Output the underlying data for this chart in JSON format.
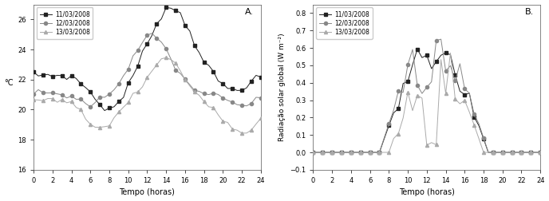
{
  "title_A": "A.",
  "title_B": "B.",
  "xlabel": "Tempo (horas)",
  "ylabel_A": "°C",
  "ylabel_B": "Radiação solar global (W m⁻²)",
  "legend_labels": [
    "11/03/2008",
    "12/03/2008",
    "13/03/2008"
  ],
  "colors": [
    "#222222",
    "#888888",
    "#aaaaaa"
  ],
  "markers": [
    "s",
    "o",
    "^"
  ],
  "marker_size": 3,
  "linewidth": 0.7,
  "xlim_A": [
    0,
    24
  ],
  "xlim_B": [
    0,
    24
  ],
  "ylim_A": [
    16,
    27
  ],
  "ylim_B": [
    -0.1,
    0.85
  ],
  "xticks": [
    0,
    2,
    4,
    6,
    8,
    10,
    12,
    14,
    16,
    18,
    20,
    22,
    24
  ],
  "yticks_A": [
    16,
    18,
    20,
    22,
    24,
    26
  ],
  "yticks_B": [
    -0.1,
    0.0,
    0.1,
    0.2,
    0.3,
    0.4,
    0.5,
    0.6,
    0.7,
    0.8
  ]
}
